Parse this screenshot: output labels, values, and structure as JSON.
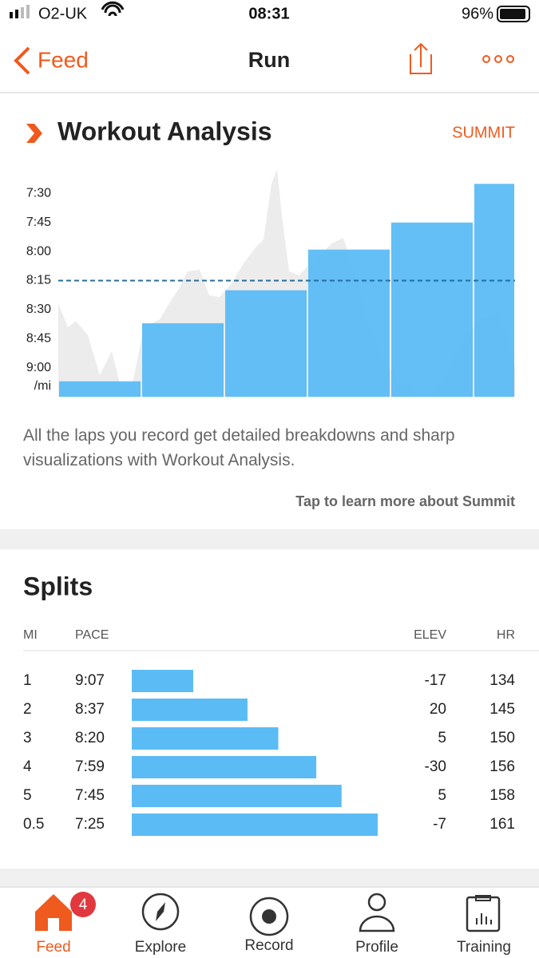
{
  "status_bar": {
    "carrier": "O2-UK",
    "time": "08:31",
    "battery": "96%"
  },
  "nav": {
    "back": "Feed",
    "title": "Run"
  },
  "workout_analysis": {
    "title": "Workout Analysis",
    "badge": "SUMMIT",
    "chart": {
      "type": "bar",
      "unit": "/mi",
      "values": [
        9.117,
        8.617,
        8.333,
        7.983,
        7.75,
        7.417
      ],
      "average": 8.25,
      "color": "#5bbcf5",
      "ylim": [
        9.25,
        7.25
      ],
      "yticks": [
        {
          "value": 7.5,
          "label": "7:30"
        },
        {
          "value": 7.75,
          "label": "7:45"
        },
        {
          "value": 8,
          "label": "8:00"
        },
        {
          "value": 8.25,
          "label": "8:15"
        },
        {
          "value": 8.5,
          "label": "8:30"
        },
        {
          "value": 8.75,
          "label": "8:45"
        },
        {
          "value": 9,
          "label": "9:00"
        }
      ]
    },
    "description": "All the laps you record get detailed breakdowns and sharp visualizations with Workout Analysis.",
    "link": "Tap to learn more about Summit"
  },
  "splits": {
    "title": "Splits",
    "headers": [
      "MI",
      "PACE",
      "ELEV",
      "HR"
    ],
    "rows": [
      [
        1,
        "9:07",
        -17,
        134
      ],
      [
        2,
        "8:37",
        20,
        145
      ],
      [
        3,
        "8:20",
        5,
        150
      ],
      [
        4,
        "7:59",
        -30,
        156
      ],
      [
        5,
        "7:45",
        5,
        158
      ],
      [
        0.5,
        "7:25",
        -7,
        161
      ]
    ]
  },
  "tab_bar": {
    "badge": 4,
    "tabs": [
      "Feed",
      "Explore",
      "Record",
      "Profile",
      "Training"
    ]
  }
}
